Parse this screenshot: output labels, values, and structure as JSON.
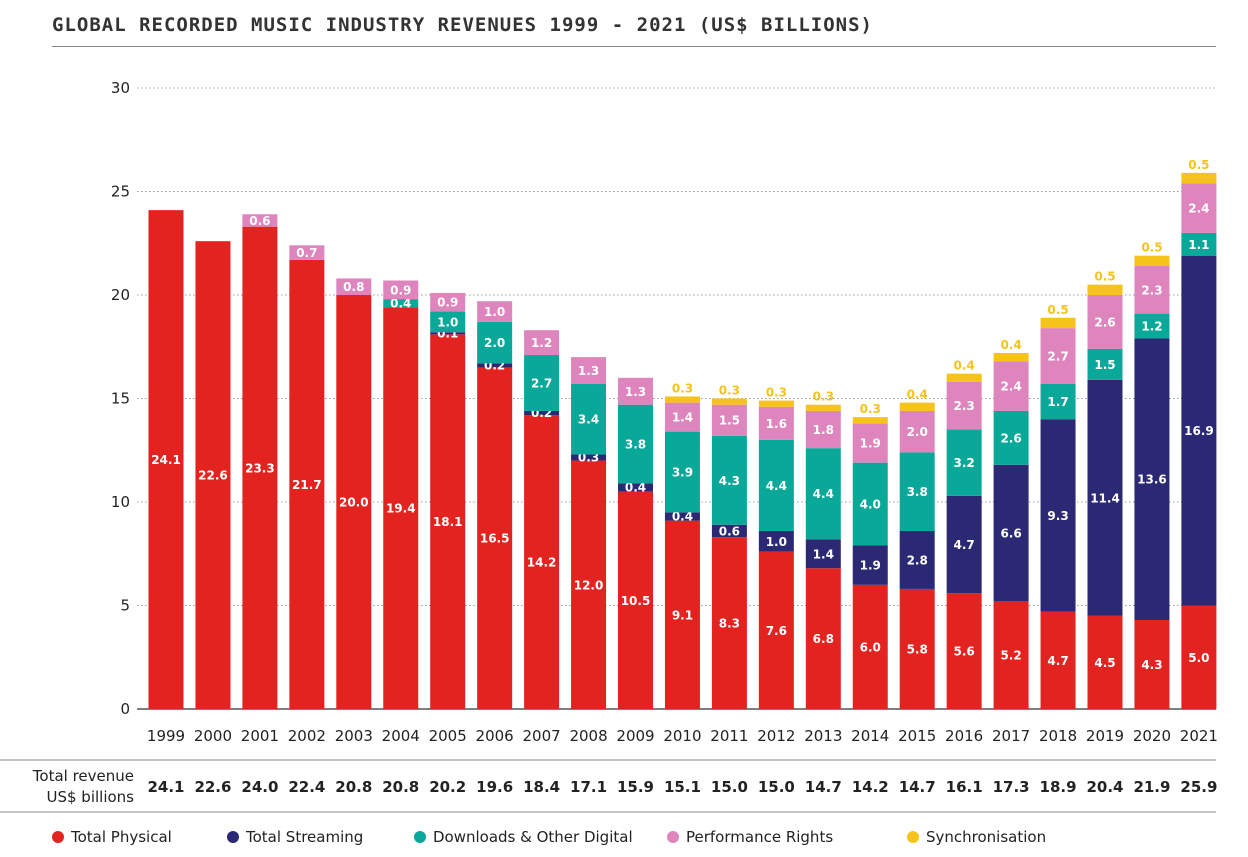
{
  "title": "GLOBAL RECORDED MUSIC INDUSTRY REVENUES 1999 - 2021 (US$ BILLIONS)",
  "total_label_line1": "Total revenue",
  "total_label_line2": "US$ billions",
  "colors": {
    "physical": "#e2231f",
    "streaming": "#2b2874",
    "downloads": "#0aa898",
    "performance": "#de85bd",
    "sync": "#f6c31b"
  },
  "legend": [
    {
      "key": "physical",
      "label": "Total Physical"
    },
    {
      "key": "streaming",
      "label": "Total Streaming"
    },
    {
      "key": "downloads",
      "label": "Downloads & Other Digital"
    },
    {
      "key": "performance",
      "label": "Performance Rights"
    },
    {
      "key": "sync",
      "label": "Synchronisation"
    }
  ],
  "chart_data": {
    "type": "bar",
    "stacked": true,
    "title": "GLOBAL RECORDED MUSIC INDUSTRY REVENUES 1999 - 2021 (US$ BILLIONS)",
    "ylim": [
      0,
      30
    ],
    "yticks": [
      0,
      5,
      10,
      15,
      20,
      25,
      30
    ],
    "grid": true,
    "legend_position": "bottom",
    "categories": [
      "1999",
      "2000",
      "2001",
      "2002",
      "2003",
      "2004",
      "2005",
      "2006",
      "2007",
      "2008",
      "2009",
      "2010",
      "2011",
      "2012",
      "2013",
      "2014",
      "2015",
      "2016",
      "2017",
      "2018",
      "2019",
      "2020",
      "2021"
    ],
    "series": [
      {
        "name": "Total Physical",
        "key": "physical",
        "values": [
          24.1,
          22.6,
          23.3,
          21.7,
          20.0,
          19.4,
          18.1,
          16.5,
          14.2,
          12.0,
          10.5,
          9.1,
          8.3,
          7.6,
          6.8,
          6.0,
          5.8,
          5.6,
          5.2,
          4.7,
          4.5,
          4.3,
          5.0
        ]
      },
      {
        "name": "Total Streaming",
        "key": "streaming",
        "values": [
          null,
          null,
          null,
          null,
          null,
          null,
          0.1,
          0.2,
          0.2,
          0.3,
          0.4,
          0.4,
          0.6,
          1.0,
          1.4,
          1.9,
          2.8,
          4.7,
          6.6,
          9.3,
          11.4,
          13.6,
          16.9
        ]
      },
      {
        "name": "Downloads & Other Digital",
        "key": "downloads",
        "values": [
          null,
          null,
          null,
          null,
          null,
          0.4,
          1.0,
          2.0,
          2.7,
          3.4,
          3.8,
          3.9,
          4.3,
          4.4,
          4.4,
          4.0,
          3.8,
          3.2,
          2.6,
          1.7,
          1.5,
          1.2,
          1.1
        ]
      },
      {
        "name": "Performance Rights",
        "key": "performance",
        "values": [
          null,
          null,
          0.6,
          0.7,
          0.8,
          0.9,
          0.9,
          1.0,
          1.2,
          1.3,
          1.3,
          1.4,
          1.5,
          1.6,
          1.8,
          1.9,
          2.0,
          2.3,
          2.4,
          2.7,
          2.6,
          2.3,
          2.4
        ]
      },
      {
        "name": "Synchronisation",
        "key": "sync",
        "values": [
          null,
          null,
          null,
          null,
          null,
          null,
          null,
          null,
          null,
          null,
          null,
          0.3,
          0.3,
          0.3,
          0.3,
          0.3,
          0.4,
          0.4,
          0.4,
          0.5,
          0.5,
          0.5,
          0.5
        ]
      }
    ],
    "totals": [
      24.1,
      22.6,
      24.0,
      22.4,
      20.8,
      20.8,
      20.2,
      19.6,
      18.4,
      17.1,
      15.9,
      15.1,
      15.0,
      15.0,
      14.7,
      14.2,
      14.7,
      16.1,
      17.3,
      18.9,
      20.4,
      21.9,
      25.9
    ]
  }
}
